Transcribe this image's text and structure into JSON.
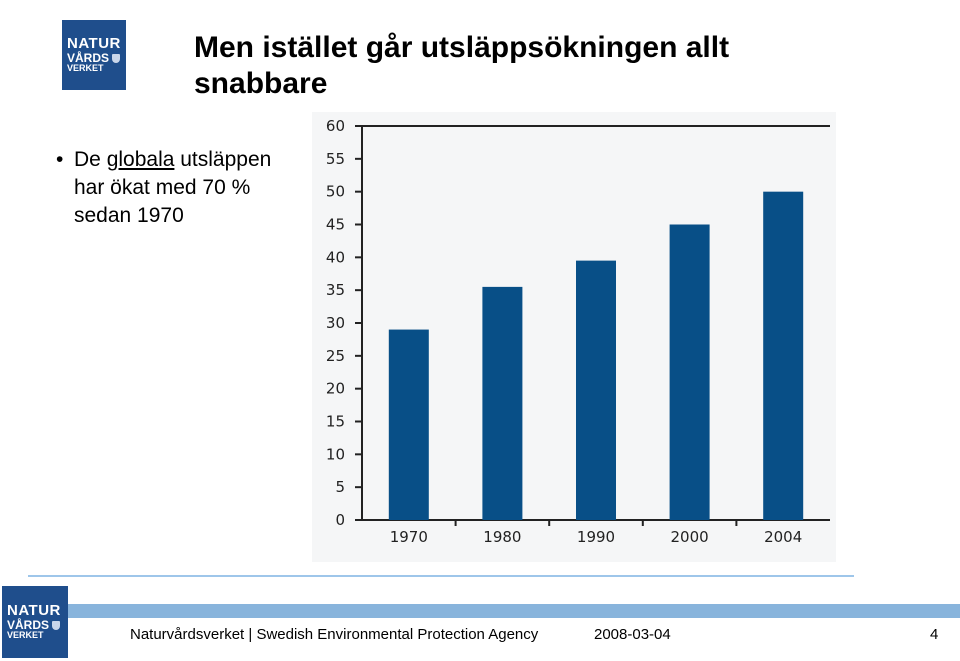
{
  "logo": {
    "line1": "NATUR",
    "line2": "VÅRDS",
    "line3": "VERKET"
  },
  "slide": {
    "title": "Men istället går utsläppsökningen allt snabbare",
    "bullet": {
      "pre": "De ",
      "underlined": "globala",
      "post": " utsläppen har ökat med 70 % sedan 1970"
    }
  },
  "chart_data": {
    "type": "bar",
    "categories": [
      "1970",
      "1980",
      "1990",
      "2000",
      "2004"
    ],
    "values": [
      29,
      35.5,
      39.5,
      45,
      50
    ],
    "ylim": [
      0,
      60
    ],
    "yticks": [
      0,
      5,
      10,
      15,
      20,
      25,
      30,
      35,
      40,
      45,
      50,
      55,
      60
    ],
    "bar_color": "#084f87",
    "grid": false,
    "title": "",
    "xlabel": "",
    "ylabel": ""
  },
  "footer": {
    "org": "Naturvårdsverket | Swedish Environmental Protection Agency",
    "date": "2008-03-04",
    "page": "4"
  },
  "colors": {
    "logo_bg": "#1f4e8c",
    "rule": "#88b4dc"
  }
}
